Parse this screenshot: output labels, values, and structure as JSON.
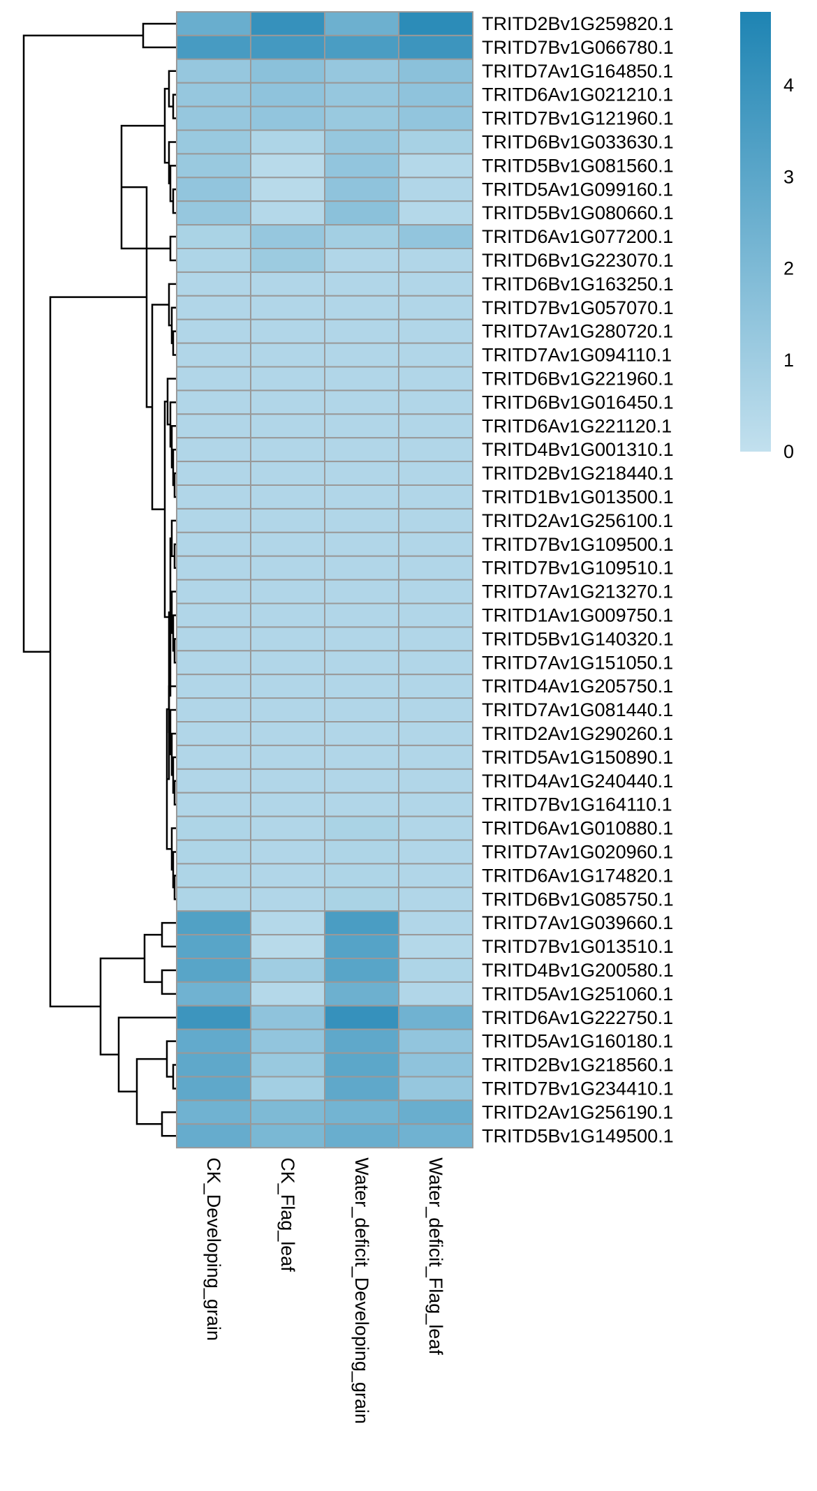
{
  "chart_data": {
    "type": "heatmap",
    "columns": [
      "CK_Developing_grain",
      "CK_Flag_leaf",
      "Water_deficit_Developing_grain",
      "Water_deficit_Flag_leaf"
    ],
    "rows": [
      "TRITD2Bv1G259820.1",
      "TRITD7Bv1G066780.1",
      "TRITD7Av1G164850.1",
      "TRITD6Av1G021210.1",
      "TRITD7Bv1G121960.1",
      "TRITD6Bv1G033630.1",
      "TRITD5Bv1G081560.1",
      "TRITD5Av1G099160.1",
      "TRITD5Bv1G080660.1",
      "TRITD6Av1G077200.1",
      "TRITD6Bv1G223070.1",
      "TRITD6Bv1G163250.1",
      "TRITD7Bv1G057070.1",
      "TRITD7Av1G280720.1",
      "TRITD7Av1G094110.1",
      "TRITD6Bv1G221960.1",
      "TRITD6Bv1G016450.1",
      "TRITD6Av1G221120.1",
      "TRITD4Bv1G001310.1",
      "TRITD2Bv1G218440.1",
      "TRITD1Bv1G013500.1",
      "TRITD2Av1G256100.1",
      "TRITD7Bv1G109500.1",
      "TRITD7Bv1G109510.1",
      "TRITD7Av1G213270.1",
      "TRITD1Av1G009750.1",
      "TRITD5Bv1G140320.1",
      "TRITD7Av1G151050.1",
      "TRITD4Av1G205750.1",
      "TRITD7Av1G081440.1",
      "TRITD2Av1G290260.1",
      "TRITD5Av1G150890.1",
      "TRITD4Av1G240440.1",
      "TRITD7Bv1G164110.1",
      "TRITD6Av1G010880.1",
      "TRITD7Av1G020960.1",
      "TRITD6Av1G174820.1",
      "TRITD6Bv1G085750.1",
      "TRITD7Av1G039660.1",
      "TRITD7Bv1G013510.1",
      "TRITD4Bv1G200580.1",
      "TRITD5Av1G251060.1",
      "TRITD6Av1G222750.1",
      "TRITD5Av1G160180.1",
      "TRITD2Bv1G218560.1",
      "TRITD7Bv1G234410.1",
      "TRITD2Av1G256190.1",
      "TRITD5Bv1G149500.1"
    ],
    "values": [
      [
        2.6,
        4.1,
        2.5,
        4.4
      ],
      [
        3.6,
        3.7,
        3.5,
        3.9
      ],
      [
        1.3,
        1.6,
        1.3,
        1.6
      ],
      [
        1.3,
        1.5,
        1.3,
        1.5
      ],
      [
        1.3,
        1.4,
        1.2,
        1.4
      ],
      [
        1.2,
        0.6,
        1.3,
        0.8
      ],
      [
        1.2,
        0.3,
        1.4,
        0.4
      ],
      [
        1.4,
        0.3,
        1.5,
        0.5
      ],
      [
        1.3,
        0.4,
        1.6,
        0.4
      ],
      [
        0.7,
        1.3,
        0.9,
        1.4
      ],
      [
        0.6,
        1.1,
        0.5,
        0.5
      ],
      [
        0.5,
        0.5,
        0.5,
        0.5
      ],
      [
        0.5,
        0.5,
        0.5,
        0.5
      ],
      [
        0.5,
        0.5,
        0.5,
        0.5
      ],
      [
        0.5,
        0.5,
        0.5,
        0.5
      ],
      [
        0.5,
        0.5,
        0.5,
        0.5
      ],
      [
        0.5,
        0.5,
        0.5,
        0.5
      ],
      [
        0.5,
        0.5,
        0.5,
        0.5
      ],
      [
        0.5,
        0.5,
        0.5,
        0.5
      ],
      [
        0.5,
        0.5,
        0.5,
        0.5
      ],
      [
        0.5,
        0.5,
        0.5,
        0.5
      ],
      [
        0.5,
        0.5,
        0.5,
        0.5
      ],
      [
        0.5,
        0.5,
        0.5,
        0.5
      ],
      [
        0.5,
        0.5,
        0.5,
        0.5
      ],
      [
        0.5,
        0.5,
        0.5,
        0.5
      ],
      [
        0.5,
        0.5,
        0.5,
        0.5
      ],
      [
        0.5,
        0.5,
        0.5,
        0.5
      ],
      [
        0.5,
        0.5,
        0.5,
        0.5
      ],
      [
        0.5,
        0.5,
        0.5,
        0.5
      ],
      [
        0.5,
        0.5,
        0.5,
        0.5
      ],
      [
        0.5,
        0.5,
        0.5,
        0.5
      ],
      [
        0.5,
        0.5,
        0.5,
        0.5
      ],
      [
        0.5,
        0.5,
        0.5,
        0.5
      ],
      [
        0.5,
        0.5,
        0.5,
        0.5
      ],
      [
        0.6,
        0.5,
        0.7,
        0.5
      ],
      [
        0.6,
        0.5,
        0.6,
        0.5
      ],
      [
        0.6,
        0.5,
        0.6,
        0.5
      ],
      [
        0.6,
        0.5,
        0.7,
        0.5
      ],
      [
        3.3,
        0.4,
        3.5,
        0.5
      ],
      [
        3.1,
        0.3,
        3.2,
        0.4
      ],
      [
        3.1,
        1.0,
        3.1,
        0.6
      ],
      [
        2.4,
        0.4,
        2.5,
        0.5
      ],
      [
        3.9,
        1.5,
        4.1,
        2.4
      ],
      [
        2.8,
        1.4,
        2.9,
        1.4
      ],
      [
        2.9,
        1.2,
        3.0,
        1.5
      ],
      [
        2.9,
        0.9,
        2.9,
        1.3
      ],
      [
        2.4,
        2.0,
        2.3,
        2.6
      ],
      [
        2.7,
        2.1,
        2.6,
        2.4
      ]
    ],
    "legend": {
      "min": 0,
      "max": 4.8,
      "ticks": [
        0,
        1,
        2,
        3,
        4
      ],
      "tick_labels": [
        "0",
        "1",
        "2",
        "3",
        "4"
      ],
      "placement": "top-right"
    },
    "color_low": "#c2e0ee",
    "color_high": "#1e84b3",
    "cell_border_color": "#999999",
    "row_dendrogram": true
  }
}
